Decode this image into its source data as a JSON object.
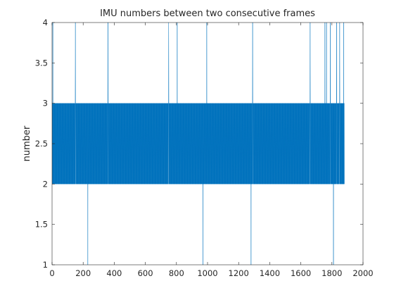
{
  "chart_data": {
    "type": "line",
    "title": "IMU numbers between two consecutive frames",
    "xlabel": "",
    "ylabel": "number",
    "xlim": [
      0,
      2000
    ],
    "ylim": [
      1,
      4
    ],
    "xticks": [
      0,
      200,
      400,
      600,
      800,
      1000,
      1200,
      1400,
      1600,
      1800,
      2000
    ],
    "yticks": [
      1,
      1.5,
      2,
      2.5,
      3,
      3.5,
      4
    ],
    "grid": false,
    "line_color": "#0072BD",
    "series": [
      {
        "name": "",
        "baseline_values": [
          2,
          3
        ],
        "x_start": 1,
        "x_end": 1880,
        "spikes": [
          {
            "x": 5,
            "y": 4
          },
          {
            "x": 150,
            "y": 4
          },
          {
            "x": 360,
            "y": 4
          },
          {
            "x": 750,
            "y": 4
          },
          {
            "x": 805,
            "y": 4
          },
          {
            "x": 995,
            "y": 4
          },
          {
            "x": 1290,
            "y": 4
          },
          {
            "x": 1660,
            "y": 4
          },
          {
            "x": 1755,
            "y": 4
          },
          {
            "x": 1765,
            "y": 4
          },
          {
            "x": 1790,
            "y": 4
          },
          {
            "x": 1830,
            "y": 4
          },
          {
            "x": 1850,
            "y": 4
          },
          {
            "x": 1875,
            "y": 4
          },
          {
            "x": 230,
            "y": 1
          },
          {
            "x": 970,
            "y": 1
          },
          {
            "x": 1280,
            "y": 1
          },
          {
            "x": 1810,
            "y": 1
          }
        ]
      }
    ]
  }
}
